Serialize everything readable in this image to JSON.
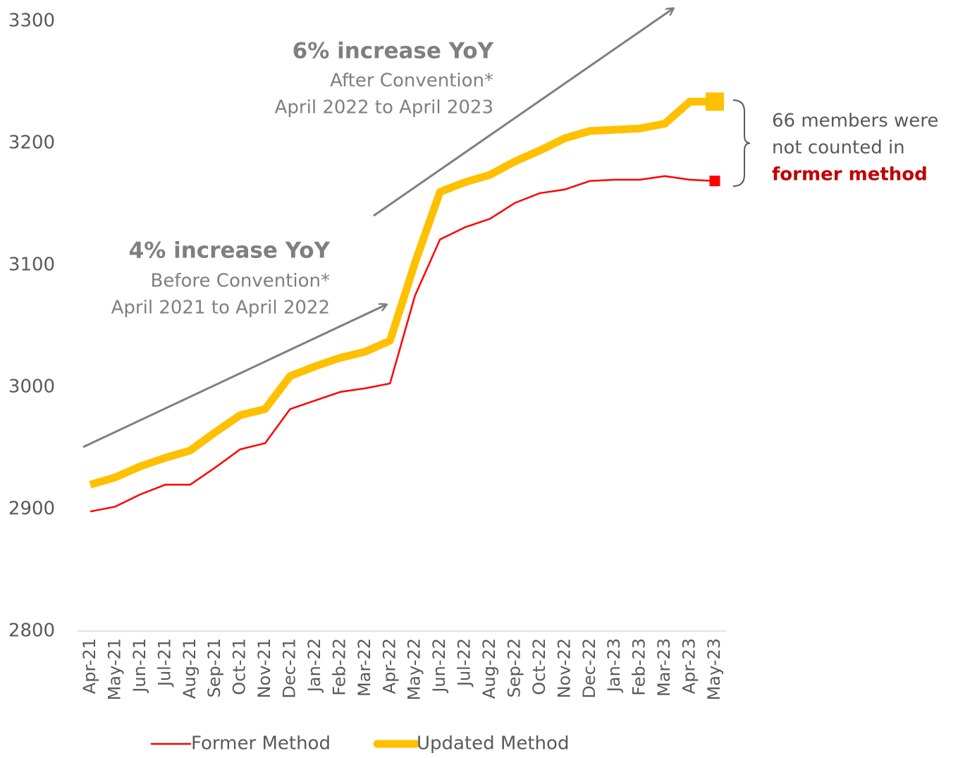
{
  "chart_data": {
    "type": "line",
    "categories": [
      "Apr-21",
      "May-21",
      "Jun-21",
      "Jul-21",
      "Aug-21",
      "Sep-21",
      "Oct-21",
      "Nov-21",
      "Dec-21",
      "Jan-22",
      "Feb-22",
      "Mar-22",
      "Apr-22",
      "May-22",
      "Jun-22",
      "Jul-22",
      "Aug-22",
      "Sep-22",
      "Oct-22",
      "Nov-22",
      "Dec-22",
      "Jan-23",
      "Feb-23",
      "Mar-23",
      "Apr-23",
      "May-23"
    ],
    "series": [
      {
        "name": "Former Method",
        "color": "#ff0000",
        "values": [
          2898,
          2902,
          2912,
          2920,
          2920,
          2934,
          2949,
          2954,
          2982,
          2989,
          2996,
          2999,
          3003,
          3075,
          3121,
          3131,
          3138,
          3151,
          3159,
          3162,
          3169,
          3170,
          3170,
          3173,
          3170,
          3169
        ]
      },
      {
        "name": "Updated Method",
        "color": "#ffc000",
        "values": [
          2920,
          2926,
          2935,
          2942,
          2948,
          2963,
          2977,
          2982,
          3009,
          3017,
          3024,
          3029,
          3038,
          3102,
          3160,
          3168,
          3174,
          3185,
          3194,
          3204,
          3210,
          3211,
          3212,
          3216,
          3234,
          3234
        ]
      }
    ],
    "ylim": [
      2800,
      3300
    ],
    "yticks": [
      2800,
      2900,
      3000,
      3100,
      3200,
      3300
    ],
    "annotations": {
      "after": {
        "heading": "6% increase YoY",
        "lines": [
          "After Convention*",
          "April 2022 to April 2023"
        ]
      },
      "before": {
        "heading": "4% increase YoY",
        "lines": [
          "Before Convention*",
          "April 2021 to April 2022"
        ]
      },
      "note": {
        "lines": [
          "66 members were",
          "not counted in"
        ],
        "highlight": "former method"
      }
    }
  }
}
